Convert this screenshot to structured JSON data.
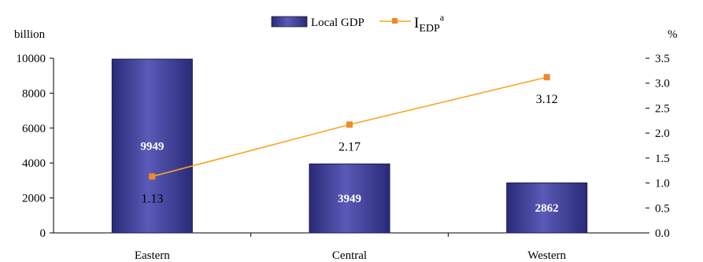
{
  "chart_data": {
    "type": "bar",
    "categories": [
      "Eastern",
      "Central",
      "Western"
    ],
    "left_unit": "billion",
    "right_unit": "%",
    "ylim": [
      0,
      10000
    ],
    "y2lim": [
      0,
      3.5
    ],
    "yticks": [
      "0",
      "2000",
      "4000",
      "6000",
      "8000",
      "10000"
    ],
    "y2ticks": [
      "0.0",
      "0.5",
      "1.0",
      "1.5",
      "2.0",
      "2.5",
      "3.0",
      "3.5"
    ],
    "series": [
      {
        "name": "Local GDP",
        "kind": "bar",
        "axis": "left",
        "values": [
          9949,
          3949,
          2862
        ],
        "labels": [
          "9949",
          "3949",
          "2862"
        ],
        "color": "#3d3d99"
      },
      {
        "name": "I",
        "name_sub": "EDP",
        "name_sup": "a",
        "kind": "line",
        "axis": "right",
        "values": [
          1.13,
          2.17,
          3.12
        ],
        "labels": [
          "1.13",
          "2.17",
          "3.12"
        ],
        "color": "#f5a623",
        "marker_color": "#f08a28"
      }
    ],
    "legend_position": "top-center"
  }
}
